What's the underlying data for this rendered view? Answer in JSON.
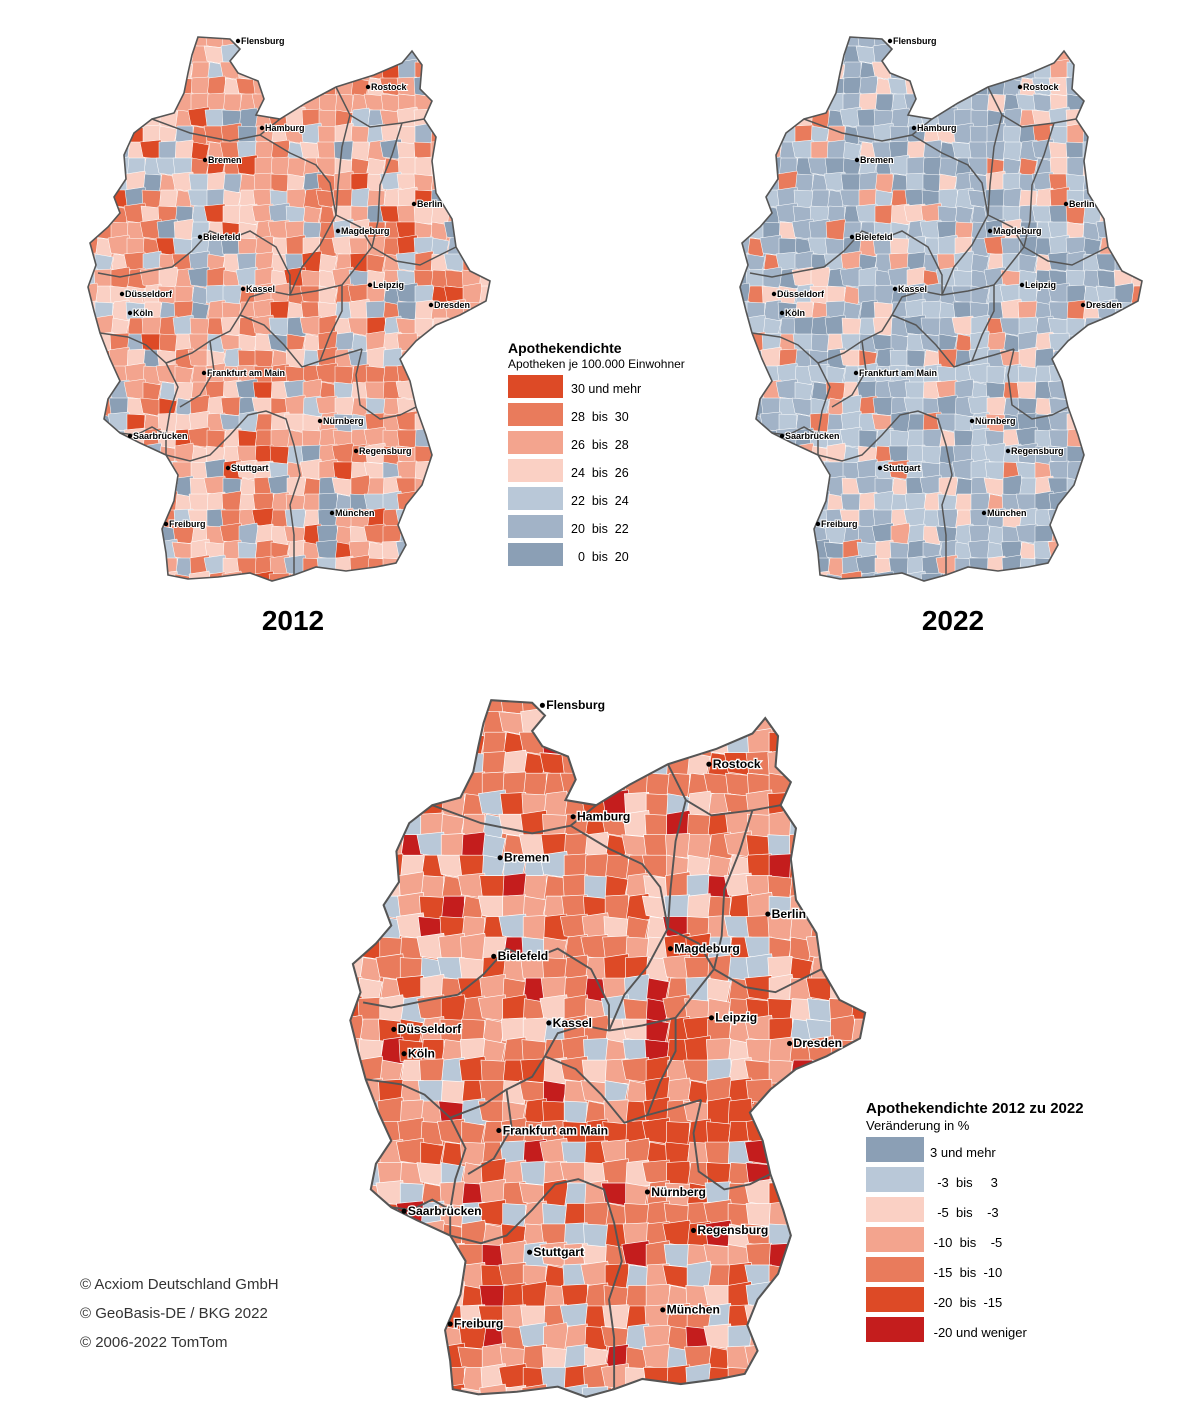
{
  "maps": {
    "map2012": {
      "year": "2012",
      "fill_sequence": [
        "#f3a48e",
        "#fad0c4",
        "#b9c8d8",
        "#e97b5c",
        "#f3a48e",
        "#dd4a26",
        "#fad0c4",
        "#a2b3c7",
        "#f3a48e",
        "#e97b5c",
        "#b9c8d8",
        "#fad0c4",
        "#f3a48e",
        "#e97b5c",
        "#fad0c4",
        "#8b9fb5"
      ]
    },
    "map2022": {
      "year": "2022",
      "fill_sequence": [
        "#a2b3c7",
        "#b9c8d8",
        "#8b9fb5",
        "#a2b3c7",
        "#fad0c4",
        "#b9c8d8",
        "#a2b3c7",
        "#f3a48e",
        "#8b9fb5",
        "#b9c8d8",
        "#a2b3c7",
        "#e97b5c",
        "#b9c8d8",
        "#8b9fb5",
        "#fad0c4",
        "#a2b3c7"
      ]
    },
    "mapChange": {
      "fill_sequence": [
        "#e97b5c",
        "#f3a48e",
        "#dd4a26",
        "#fad0c4",
        "#e97b5c",
        "#b9c8d8",
        "#c41d1d",
        "#f3a48e",
        "#e97b5c",
        "#dd4a26",
        "#fad0c4",
        "#f3a48e",
        "#e97b5c",
        "#b9c8d8",
        "#dd4a26",
        "#f3a48e"
      ]
    }
  },
  "cities": [
    {
      "id": "flensburg",
      "name": "Flensburg"
    },
    {
      "id": "rostock",
      "name": "Rostock"
    },
    {
      "id": "hamburg",
      "name": "Hamburg"
    },
    {
      "id": "bremen",
      "name": "Bremen"
    },
    {
      "id": "berlin",
      "name": "Berlin"
    },
    {
      "id": "bielefeld",
      "name": "Bielefeld"
    },
    {
      "id": "magdeburg",
      "name": "Magdeburg"
    },
    {
      "id": "kassel",
      "name": "Kassel"
    },
    {
      "id": "leipzig",
      "name": "Leipzig"
    },
    {
      "id": "duesseldorf",
      "name": "Düsseldorf"
    },
    {
      "id": "dresden",
      "name": "Dresden"
    },
    {
      "id": "koeln",
      "name": "Köln"
    },
    {
      "id": "frankfurt",
      "name": "Frankfurt am Main"
    },
    {
      "id": "nuernberg",
      "name": "Nürnberg"
    },
    {
      "id": "saarbruecken",
      "name": "Saarbrücken"
    },
    {
      "id": "regensburg",
      "name": "Regensburg"
    },
    {
      "id": "stuttgart",
      "name": "Stuttgart"
    },
    {
      "id": "muenchen",
      "name": "München"
    },
    {
      "id": "freiburg",
      "name": "Freiburg"
    }
  ],
  "legend_density": {
    "title": "Apothekendichte",
    "subtitle": "Apotheken je 100.000 Einwohner",
    "items": [
      {
        "label": "30 und mehr",
        "color": "#dd4a26"
      },
      {
        "label": "28  bis  30",
        "color": "#e97b5c"
      },
      {
        "label": "26  bis  28",
        "color": "#f3a48e"
      },
      {
        "label": "24  bis  26",
        "color": "#fad0c4"
      },
      {
        "label": "22  bis  24",
        "color": "#b9c8d8"
      },
      {
        "label": "20  bis  22",
        "color": "#a2b3c7"
      },
      {
        "label": "  0  bis  20",
        "color": "#8b9fb5"
      }
    ]
  },
  "legend_change": {
    "title": "Apothekendichte 2012 zu 2022",
    "subtitle": "Veränderung in %",
    "items": [
      {
        "label": "3 und mehr",
        "color": "#8b9fb5"
      },
      {
        "label": "  -3  bis     3",
        "color": "#b9c8d8"
      },
      {
        "label": "  -5  bis    -3",
        "color": "#fad0c4"
      },
      {
        "label": " -10  bis    -5",
        "color": "#f3a48e"
      },
      {
        "label": " -15  bis  -10",
        "color": "#e97b5c"
      },
      {
        "label": " -20  bis  -15",
        "color": "#dd4a26"
      },
      {
        "label": " -20 und weniger",
        "color": "#c41d1d"
      }
    ]
  },
  "copyright": [
    "© Acxiom Deutschland GmbH",
    "© GeoBasis-DE / BKG 2022",
    "© 2006-2022 TomTom"
  ],
  "colors": {
    "border": "#555555",
    "district_line": "#ffffff"
  }
}
